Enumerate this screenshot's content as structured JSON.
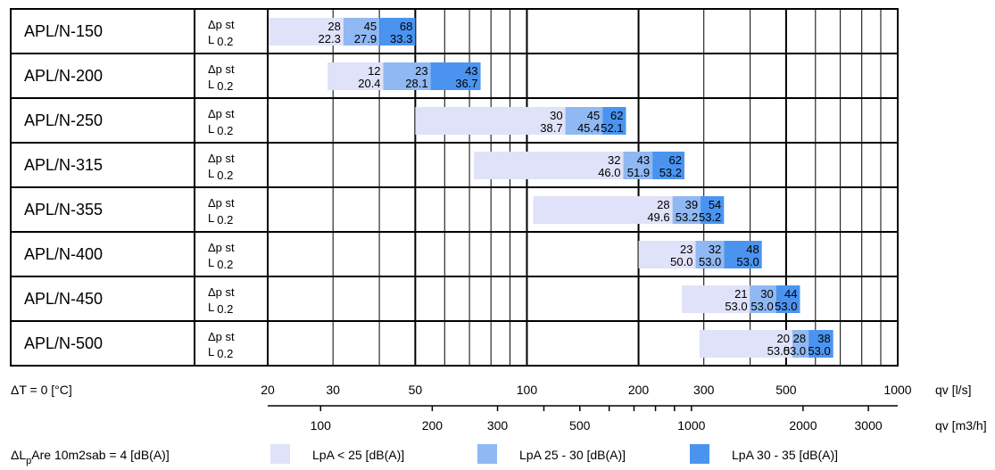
{
  "chart_data": {
    "type": "bar",
    "colors": {
      "light": "#dfe2f8",
      "mid": "#90b8f2",
      "dark": "#4a94f0"
    },
    "row_label_top": "Δp st",
    "row_label_bottom_prefix": "L",
    "row_label_bottom_sub": "0.2",
    "rows": [
      {
        "model": "APL/N-150",
        "ranges": [
          [
            20,
            32
          ],
          [
            32,
            40
          ],
          [
            40,
            50
          ]
        ],
        "dp": [
          "28",
          "45",
          "68"
        ],
        "l": [
          "22.3",
          "27.9",
          "33.3"
        ]
      },
      {
        "model": "APL/N-200",
        "ranges": [
          [
            29,
            41
          ],
          [
            41,
            55
          ],
          [
            55,
            75
          ]
        ],
        "dp": [
          "12",
          "23",
          "43"
        ],
        "l": [
          "20.4",
          "28.1",
          "36.7"
        ]
      },
      {
        "model": "APL/N-250",
        "ranges": [
          [
            50,
            127
          ],
          [
            127,
            160
          ],
          [
            160,
            185
          ]
        ],
        "dp": [
          "30",
          "45",
          "62"
        ],
        "l": [
          "38.7",
          "45.4",
          "52.1"
        ]
      },
      {
        "model": "APL/N-315",
        "ranges": [
          [
            72,
            182
          ],
          [
            182,
            218
          ],
          [
            218,
            266
          ]
        ],
        "dp": [
          "32",
          "43",
          "62"
        ],
        "l": [
          "46.0",
          "51.9",
          "53.2"
        ]
      },
      {
        "model": "APL/N-355",
        "ranges": [
          [
            104,
            247
          ],
          [
            247,
            294
          ],
          [
            294,
            340
          ]
        ],
        "dp": [
          "28",
          "39",
          "54"
        ],
        "l": [
          "49.6",
          "53.2",
          "53.2"
        ]
      },
      {
        "model": "APL/N-400",
        "ranges": [
          [
            200,
            285
          ],
          [
            285,
            340
          ],
          [
            340,
            430
          ]
        ],
        "dp": [
          "23",
          "32",
          "48"
        ],
        "l": [
          "50.0",
          "53.0",
          "53.0"
        ]
      },
      {
        "model": "APL/N-450",
        "ranges": [
          [
            262,
            400
          ],
          [
            400,
            470
          ],
          [
            470,
            545
          ]
        ],
        "dp": [
          "21",
          "30",
          "44"
        ],
        "l": [
          "53.0",
          "53.0",
          "53.0"
        ]
      },
      {
        "model": "APL/N-500",
        "ranges": [
          [
            292,
            520
          ],
          [
            520,
            575
          ],
          [
            575,
            670
          ]
        ],
        "dp": [
          "20",
          "28",
          "38"
        ],
        "l": [
          "53.0",
          "53.0",
          "53.0"
        ]
      }
    ],
    "x_ls": {
      "unit": "qv [l/s]",
      "range": [
        20,
        1000
      ],
      "scale": "log",
      "tick_labels": [
        "20",
        "30",
        "50",
        "100",
        "200",
        "300",
        "500",
        "1000"
      ]
    },
    "x_m3h": {
      "unit": "qv [m3/h]",
      "tick_labels": [
        "100",
        "200",
        "300",
        "500",
        "1000",
        "2000",
        "3000"
      ]
    },
    "left_notes": {
      "dt": "ΔT = 0 [°C]",
      "dl_prefix": "ΔL",
      "dl_sub": "p",
      "dl_rest": "Are 10m2sab = 4 [dB(A)]"
    },
    "legend": [
      {
        "label": "LpA < 25 [dB(A)]",
        "color": "#dfe2f8"
      },
      {
        "label": "LpA 25 - 30 [dB(A)]",
        "color": "#90b8f2"
      },
      {
        "label": "LpA 30 - 35 [dB(A)]",
        "color": "#4a94f0"
      }
    ]
  }
}
